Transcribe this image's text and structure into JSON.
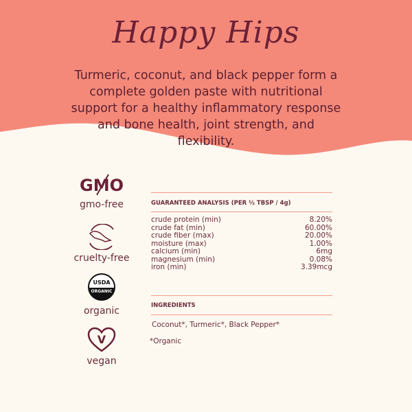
{
  "colors": {
    "header_bg": "#f4897a",
    "background": "#fdf9f1",
    "text": "#6b2a3a",
    "rule": "#f29a8c"
  },
  "title": "Happy Hips",
  "description": "Turmeric, coconut, and black pepper form a complete golden paste with nutritional support for a healthy inflammatory response and bone health, joint strength, and flexibility.",
  "badges": [
    {
      "icon": "gmo-crossed-icon",
      "icon_text": "GMO",
      "label": "gmo-free"
    },
    {
      "icon": "leaping-bunny-icon",
      "label": "cruelty-free"
    },
    {
      "icon": "usda-organic-seal-icon",
      "icon_text": "USDA ORGANIC",
      "label": "organic"
    },
    {
      "icon": "heart-v-icon",
      "icon_text": "V",
      "label": "vegan"
    }
  ],
  "analysis": {
    "heading": "GUARANTEED ANALYSIS (PER ½ TBSP / 4g)",
    "rows": [
      {
        "name": "crude protein (min)",
        "value": "8.20%"
      },
      {
        "name": "crude fat (min)",
        "value": "60.00%"
      },
      {
        "name": "crude fiber (max)",
        "value": "20.00%"
      },
      {
        "name": "moisture (max)",
        "value": "1.00%"
      },
      {
        "name": "calcium (min)",
        "value": "6mg"
      },
      {
        "name": "magnesium (min)",
        "value": "0.08%"
      },
      {
        "name": "iron (min)",
        "value": "3.39mcg"
      }
    ]
  },
  "ingredients": {
    "heading": "INGREDIENTS",
    "text": "Coconut*, Turmeric*, Black Pepper*",
    "note": "*Organic"
  }
}
